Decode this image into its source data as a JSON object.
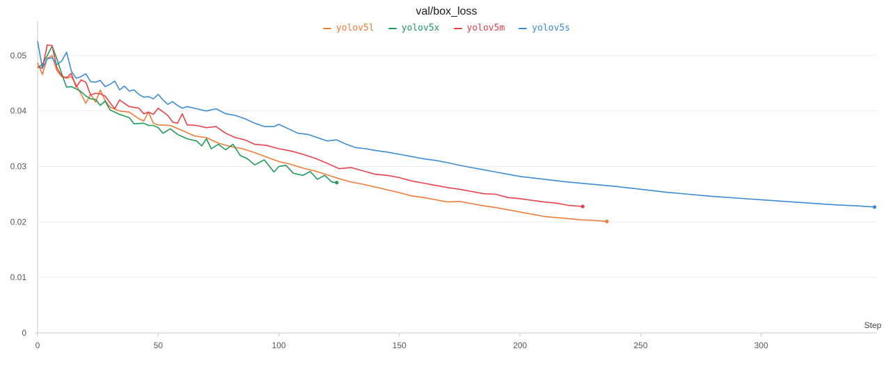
{
  "chart_data": {
    "type": "line",
    "title": "val/box_loss",
    "xlabel": "Step",
    "ylabel": "",
    "xlim": [
      0,
      348
    ],
    "ylim": [
      0,
      0.055
    ],
    "xticks": [
      0,
      50,
      100,
      150,
      200,
      250,
      300
    ],
    "yticks": [
      0,
      0.01,
      0.02,
      0.03,
      0.04,
      0.05
    ],
    "xtick_labels": [
      "0",
      "50",
      "100",
      "150",
      "200",
      "250",
      "300"
    ],
    "ytick_labels": [
      "0",
      "0.01",
      "0.02",
      "0.03",
      "0.04",
      "0.05"
    ],
    "grid": true,
    "legend_position": "top-center",
    "series": [
      {
        "name": "yolov5l",
        "color": "#f07b36",
        "points": [
          [
            0,
            0.0487
          ],
          [
            2,
            0.0466
          ],
          [
            4,
            0.0495
          ],
          [
            6,
            0.05
          ],
          [
            8,
            0.0473
          ],
          [
            10,
            0.0462
          ],
          [
            12,
            0.0459
          ],
          [
            14,
            0.0462
          ],
          [
            16,
            0.0447
          ],
          [
            18,
            0.0431
          ],
          [
            20,
            0.0414
          ],
          [
            22,
            0.043
          ],
          [
            24,
            0.0416
          ],
          [
            26,
            0.0438
          ],
          [
            28,
            0.0419
          ],
          [
            30,
            0.0407
          ],
          [
            34,
            0.04
          ],
          [
            38,
            0.0398
          ],
          [
            42,
            0.0386
          ],
          [
            44,
            0.0382
          ],
          [
            46,
            0.0398
          ],
          [
            48,
            0.0378
          ],
          [
            50,
            0.0375
          ],
          [
            55,
            0.0374
          ],
          [
            60,
            0.0365
          ],
          [
            65,
            0.0355
          ],
          [
            70,
            0.0352
          ],
          [
            75,
            0.0342
          ],
          [
            80,
            0.0336
          ],
          [
            85,
            0.0332
          ],
          [
            90,
            0.0325
          ],
          [
            95,
            0.0317
          ],
          [
            100,
            0.0309
          ],
          [
            105,
            0.0304
          ],
          [
            110,
            0.0297
          ],
          [
            115,
            0.0292
          ],
          [
            120,
            0.0285
          ],
          [
            125,
            0.0278
          ],
          [
            130,
            0.0272
          ],
          [
            135,
            0.0268
          ],
          [
            140,
            0.0263
          ],
          [
            145,
            0.0258
          ],
          [
            150,
            0.0253
          ],
          [
            155,
            0.0247
          ],
          [
            160,
            0.0244
          ],
          [
            165,
            0.024
          ],
          [
            170,
            0.0236
          ],
          [
            175,
            0.0237
          ],
          [
            180,
            0.0233
          ],
          [
            185,
            0.0229
          ],
          [
            190,
            0.0226
          ],
          [
            195,
            0.0222
          ],
          [
            200,
            0.0218
          ],
          [
            205,
            0.0214
          ],
          [
            210,
            0.021
          ],
          [
            215,
            0.0208
          ],
          [
            220,
            0.0206
          ],
          [
            225,
            0.0204
          ],
          [
            230,
            0.0203
          ],
          [
            236,
            0.0201
          ]
        ]
      },
      {
        "name": "yolov5x",
        "color": "#1e9a5b",
        "points": [
          [
            0,
            0.0478
          ],
          [
            2,
            0.0484
          ],
          [
            4,
            0.05
          ],
          [
            6,
            0.0517
          ],
          [
            8,
            0.0494
          ],
          [
            10,
            0.0467
          ],
          [
            12,
            0.0443
          ],
          [
            14,
            0.0444
          ],
          [
            16,
            0.044
          ],
          [
            18,
            0.0435
          ],
          [
            20,
            0.0427
          ],
          [
            22,
            0.0422
          ],
          [
            24,
            0.0421
          ],
          [
            26,
            0.041
          ],
          [
            28,
            0.0418
          ],
          [
            30,
            0.0402
          ],
          [
            34,
            0.0394
          ],
          [
            38,
            0.0388
          ],
          [
            40,
            0.0377
          ],
          [
            44,
            0.0378
          ],
          [
            46,
            0.0374
          ],
          [
            48,
            0.0374
          ],
          [
            50,
            0.037
          ],
          [
            52,
            0.036
          ],
          [
            55,
            0.0368
          ],
          [
            58,
            0.0358
          ],
          [
            62,
            0.035
          ],
          [
            66,
            0.0346
          ],
          [
            68,
            0.0337
          ],
          [
            70,
            0.035
          ],
          [
            72,
            0.0332
          ],
          [
            75,
            0.034
          ],
          [
            78,
            0.033
          ],
          [
            81,
            0.034
          ],
          [
            84,
            0.032
          ],
          [
            87,
            0.0314
          ],
          [
            90,
            0.0303
          ],
          [
            94,
            0.0312
          ],
          [
            98,
            0.029
          ],
          [
            100,
            0.03
          ],
          [
            103,
            0.0302
          ],
          [
            106,
            0.0288
          ],
          [
            110,
            0.0284
          ],
          [
            113,
            0.0291
          ],
          [
            116,
            0.0277
          ],
          [
            119,
            0.0284
          ],
          [
            122,
            0.0272
          ],
          [
            124,
            0.0271
          ]
        ]
      },
      {
        "name": "yolov5m",
        "color": "#e8404a",
        "points": [
          [
            0,
            0.048
          ],
          [
            2,
            0.0477
          ],
          [
            4,
            0.0519
          ],
          [
            6,
            0.0518
          ],
          [
            8,
            0.0478
          ],
          [
            10,
            0.0463
          ],
          [
            12,
            0.046
          ],
          [
            14,
            0.0468
          ],
          [
            16,
            0.0443
          ],
          [
            18,
            0.0456
          ],
          [
            20,
            0.0452
          ],
          [
            22,
            0.0429
          ],
          [
            24,
            0.0432
          ],
          [
            26,
            0.0431
          ],
          [
            28,
            0.0427
          ],
          [
            30,
            0.0415
          ],
          [
            32,
            0.0404
          ],
          [
            34,
            0.042
          ],
          [
            38,
            0.0408
          ],
          [
            42,
            0.0405
          ],
          [
            44,
            0.0395
          ],
          [
            46,
            0.0398
          ],
          [
            48,
            0.0394
          ],
          [
            50,
            0.0405
          ],
          [
            54,
            0.0392
          ],
          [
            56,
            0.038
          ],
          [
            58,
            0.0378
          ],
          [
            60,
            0.0395
          ],
          [
            62,
            0.0375
          ],
          [
            66,
            0.0374
          ],
          [
            70,
            0.037
          ],
          [
            74,
            0.0372
          ],
          [
            78,
            0.036
          ],
          [
            82,
            0.0352
          ],
          [
            86,
            0.0348
          ],
          [
            90,
            0.034
          ],
          [
            95,
            0.0338
          ],
          [
            100,
            0.0332
          ],
          [
            105,
            0.0328
          ],
          [
            110,
            0.0322
          ],
          [
            115,
            0.0315
          ],
          [
            120,
            0.0306
          ],
          [
            125,
            0.0296
          ],
          [
            130,
            0.0298
          ],
          [
            135,
            0.0292
          ],
          [
            140,
            0.0286
          ],
          [
            145,
            0.0284
          ],
          [
            150,
            0.028
          ],
          [
            155,
            0.0274
          ],
          [
            160,
            0.027
          ],
          [
            165,
            0.0266
          ],
          [
            170,
            0.0262
          ],
          [
            175,
            0.0259
          ],
          [
            180,
            0.0255
          ],
          [
            185,
            0.0251
          ],
          [
            190,
            0.025
          ],
          [
            195,
            0.0244
          ],
          [
            200,
            0.0242
          ],
          [
            205,
            0.0239
          ],
          [
            210,
            0.0236
          ],
          [
            215,
            0.0234
          ],
          [
            220,
            0.023
          ],
          [
            226,
            0.0228
          ]
        ]
      },
      {
        "name": "yolov5s",
        "color": "#3b8bd4",
        "points": [
          [
            0,
            0.0526
          ],
          [
            2,
            0.0477
          ],
          [
            4,
            0.0494
          ],
          [
            6,
            0.0496
          ],
          [
            8,
            0.0484
          ],
          [
            10,
            0.049
          ],
          [
            12,
            0.0506
          ],
          [
            14,
            0.0472
          ],
          [
            16,
            0.0459
          ],
          [
            18,
            0.0462
          ],
          [
            20,
            0.0467
          ],
          [
            22,
            0.0453
          ],
          [
            24,
            0.0452
          ],
          [
            26,
            0.0455
          ],
          [
            28,
            0.0444
          ],
          [
            30,
            0.0448
          ],
          [
            32,
            0.0454
          ],
          [
            34,
            0.0438
          ],
          [
            36,
            0.0445
          ],
          [
            38,
            0.0436
          ],
          [
            40,
            0.0438
          ],
          [
            42,
            0.043
          ],
          [
            44,
            0.0425
          ],
          [
            46,
            0.0426
          ],
          [
            48,
            0.0422
          ],
          [
            50,
            0.043
          ],
          [
            52,
            0.042
          ],
          [
            54,
            0.0412
          ],
          [
            56,
            0.0417
          ],
          [
            58,
            0.041
          ],
          [
            60,
            0.0405
          ],
          [
            62,
            0.0408
          ],
          [
            66,
            0.0404
          ],
          [
            70,
            0.04
          ],
          [
            74,
            0.0404
          ],
          [
            78,
            0.0395
          ],
          [
            82,
            0.0392
          ],
          [
            86,
            0.0386
          ],
          [
            90,
            0.0378
          ],
          [
            94,
            0.0372
          ],
          [
            98,
            0.0372
          ],
          [
            100,
            0.0376
          ],
          [
            104,
            0.0368
          ],
          [
            108,
            0.036
          ],
          [
            112,
            0.0358
          ],
          [
            116,
            0.0352
          ],
          [
            120,
            0.0346
          ],
          [
            124,
            0.0348
          ],
          [
            128,
            0.034
          ],
          [
            132,
            0.0334
          ],
          [
            136,
            0.0332
          ],
          [
            140,
            0.0329
          ],
          [
            145,
            0.0326
          ],
          [
            150,
            0.0322
          ],
          [
            155,
            0.0318
          ],
          [
            160,
            0.0314
          ],
          [
            165,
            0.0311
          ],
          [
            170,
            0.0307
          ],
          [
            175,
            0.0302
          ],
          [
            180,
            0.0298
          ],
          [
            185,
            0.0294
          ],
          [
            190,
            0.029
          ],
          [
            195,
            0.0286
          ],
          [
            200,
            0.0282
          ],
          [
            210,
            0.0277
          ],
          [
            220,
            0.0272
          ],
          [
            230,
            0.0268
          ],
          [
            240,
            0.0264
          ],
          [
            250,
            0.0259
          ],
          [
            260,
            0.0254
          ],
          [
            270,
            0.025
          ],
          [
            280,
            0.0246
          ],
          [
            290,
            0.0243
          ],
          [
            300,
            0.024
          ],
          [
            310,
            0.0237
          ],
          [
            320,
            0.0234
          ],
          [
            330,
            0.0231
          ],
          [
            340,
            0.0229
          ],
          [
            347,
            0.0227
          ]
        ]
      }
    ]
  }
}
